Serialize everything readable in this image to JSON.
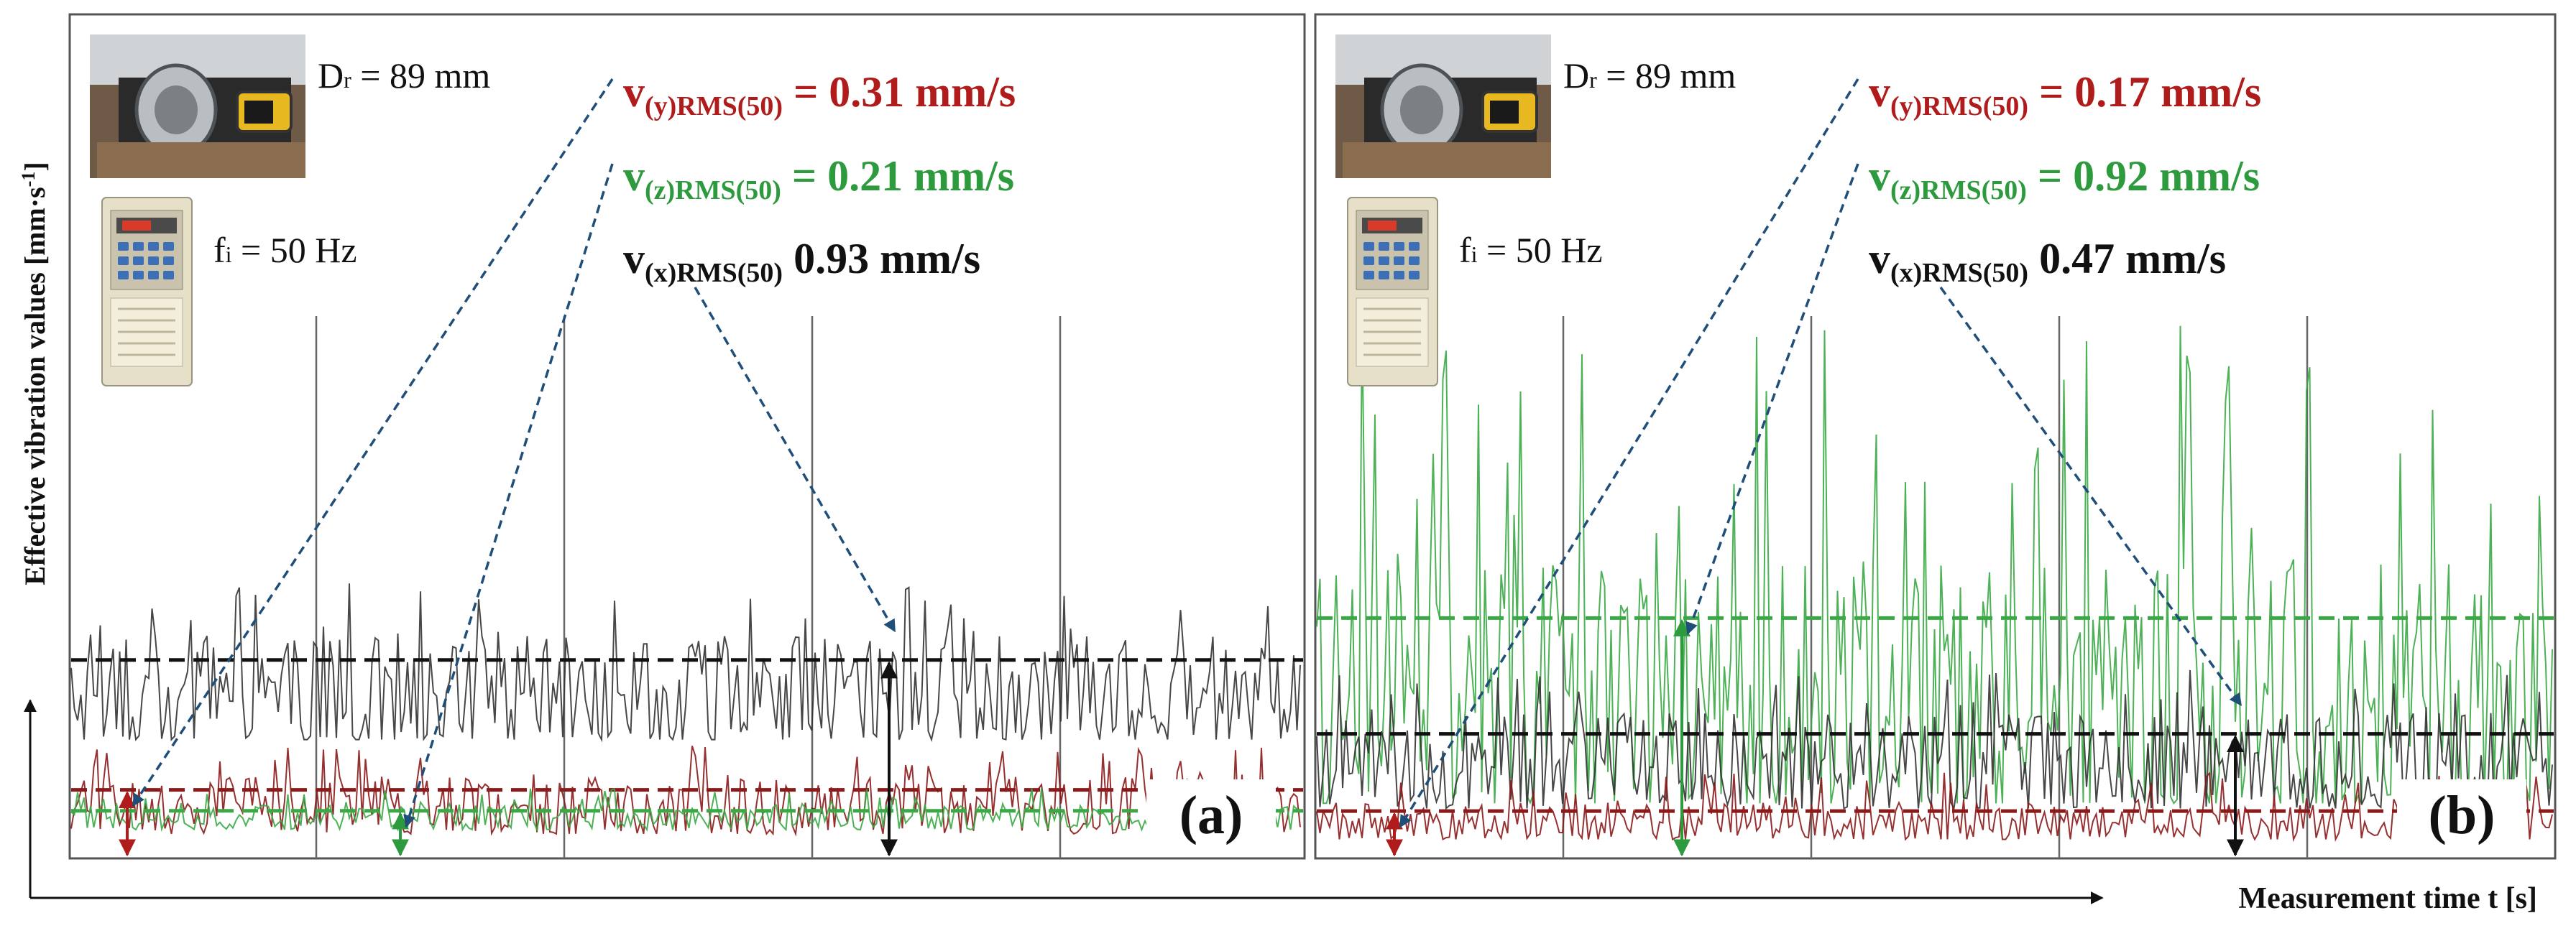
{
  "axes": {
    "ylabel": "Effective vibration values [mm·s",
    "ylabel_sup": "-1",
    "ylabel_close": "]",
    "xlabel": "Measurement time t [s]"
  },
  "chart_data": [
    {
      "type": "line",
      "panel_label": "(a)",
      "info": {
        "roller_diameter_symbol": "D",
        "roller_diameter_sub": "r",
        "roller_diameter_value": " = 89 mm",
        "frequency_symbol": "f",
        "frequency_sub": "i",
        "frequency_value": " = 50 Hz"
      },
      "rms_labels": [
        {
          "symbol": "v",
          "sub": "(y)RMS(50)",
          "value": "= 0.31 mm/s",
          "color": "#b01c1c"
        },
        {
          "symbol": "v",
          "sub": "(z)RMS(50)",
          "value": "= 0.21 mm/s",
          "color": "#2e9a3e"
        },
        {
          "symbol": "v",
          "sub": "(x)RMS(50)",
          "value": "0.93 mm/s",
          "color": "#111111"
        }
      ],
      "ylim": [
        0,
        2.4
      ],
      "series": [
        {
          "name": "v(x)",
          "color": "#333333",
          "rms": 0.93,
          "signal_min": 0.55,
          "signal_max": 1.3
        },
        {
          "name": "v(y)",
          "color": "#8b1a1a",
          "rms": 0.31,
          "signal_min": 0.1,
          "signal_max": 0.52
        },
        {
          "name": "v(z)",
          "color": "#3aa845",
          "rms": 0.21,
          "signal_min": 0.12,
          "signal_max": 0.32
        }
      ]
    },
    {
      "type": "line",
      "panel_label": "(b)",
      "info": {
        "roller_diameter_symbol": "D",
        "roller_diameter_sub": "r",
        "roller_diameter_value": " = 89 mm",
        "frequency_symbol": "f",
        "frequency_sub": "i",
        "frequency_value": " = 50 Hz"
      },
      "rms_labels": [
        {
          "symbol": "v",
          "sub": "(y)RMS(50)",
          "value": "= 0.17 mm/s",
          "color": "#b01c1c"
        },
        {
          "symbol": "v",
          "sub": "(z)RMS(50)",
          "value": "= 0.92 mm/s",
          "color": "#2e9a3e"
        },
        {
          "symbol": "v",
          "sub": "(x)RMS(50)",
          "value": "0.47 mm/s",
          "color": "#111111"
        }
      ],
      "ylim": [
        0,
        2.4
      ],
      "series": [
        {
          "name": "v(z)",
          "color": "#3aa845",
          "rms": 0.92,
          "signal_min": 0.2,
          "signal_max": 2.1
        },
        {
          "name": "v(x)",
          "color": "#333333",
          "rms": 0.47,
          "signal_min": 0.18,
          "signal_max": 0.72
        },
        {
          "name": "v(y)",
          "color": "#8b1a1a",
          "rms": 0.17,
          "signal_min": 0.06,
          "signal_max": 0.32
        }
      ]
    }
  ]
}
